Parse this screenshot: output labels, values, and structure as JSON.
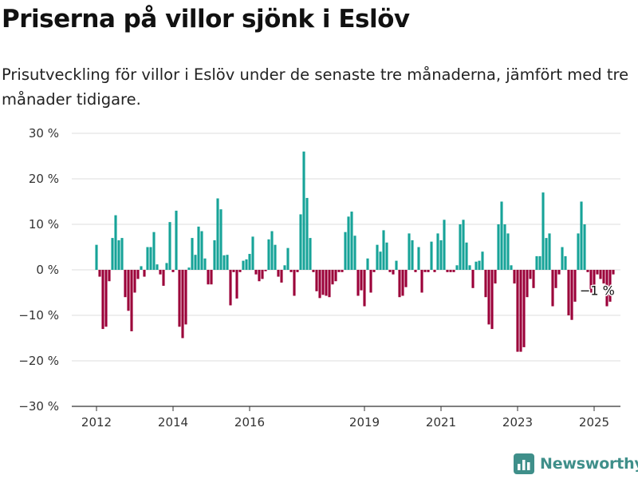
{
  "title": "Priserna på villor sjönk i Eslöv",
  "subtitle": "Prisutveckling för villor i Eslöv under de senaste tre månaderna, jämfört med tre månader tidigare.",
  "brand": {
    "name": "Newsworthy",
    "icon": "bar-chart-logo-icon"
  },
  "colors": {
    "positive": "#17a398",
    "negative": "#9b0039",
    "grid": "#dddddd",
    "axis": "#333333"
  },
  "chart_data": {
    "type": "bar",
    "ylim": [
      -30,
      30
    ],
    "y_ticks": [
      30,
      20,
      10,
      0,
      -10,
      -20,
      -30
    ],
    "y_tick_labels": [
      "30 %",
      "20 %",
      "10 %",
      "0 %",
      "−10 %",
      "−20 %",
      "−30 %"
    ],
    "x_tick_labels": [
      "2012",
      "2014",
      "2016",
      "2019",
      "2021",
      "2023",
      "2025"
    ],
    "x_tick_months": [
      0,
      24,
      48,
      84,
      108,
      132,
      156
    ],
    "start_month": 0,
    "series": [
      {
        "values": [
          5.5,
          -1.5,
          -13,
          -12.5,
          -2.5,
          7,
          12,
          6.5,
          7,
          -6,
          -9,
          -13.5,
          -5,
          -2,
          0.8,
          -1.5,
          5,
          5,
          8.3,
          1.2,
          -1,
          -3.5,
          1.5,
          10.5,
          -0.5,
          13,
          -12.5,
          -15,
          -12,
          0.5,
          7,
          3.3,
          9.5,
          8.5,
          2.5,
          -3.2,
          -3.2,
          6.5,
          15.7,
          13.3,
          3.2,
          3.3,
          -7.8,
          -0.5,
          -6.3,
          -0.5,
          2,
          2.3,
          3.5,
          7.3,
          -1,
          -2.5,
          -2,
          -0.3,
          6.7,
          8.5,
          5.5,
          -1.5,
          -2.8,
          1,
          4.8,
          -0.5,
          -5.7,
          -0.5,
          12.2,
          26,
          15.8,
          7,
          -0.5,
          -4.7,
          -6.2,
          -5.5,
          -5.7,
          -6,
          -3.2,
          -2.5,
          -0.5,
          -0.5,
          8.3,
          11.7,
          12.8,
          7.5,
          -5.7,
          -4.5,
          -8,
          2.5,
          -5,
          -0.5,
          5.5,
          4,
          8.7,
          6,
          -0.5,
          -1,
          2,
          -6,
          -5.7,
          -3.8,
          8,
          6.5,
          -0.5,
          5,
          -5,
          -0.5,
          -0.5,
          6.2,
          -0.5,
          8,
          6.5,
          11,
          -0.5,
          -0.5,
          -0.5,
          1,
          10,
          11,
          6,
          1,
          -4,
          1.8,
          2,
          4,
          -6,
          -12,
          -13,
          -3,
          10,
          15,
          10,
          8,
          1,
          -3,
          -18,
          -18,
          -17,
          -6,
          -2,
          -4,
          3,
          3,
          17,
          7,
          8,
          -8,
          -4,
          -1,
          5,
          3,
          -10,
          -11,
          -7,
          8,
          15,
          10,
          -0.5,
          -5,
          -4,
          -1,
          -2,
          -3,
          -8,
          -7,
          -1
        ]
      }
    ],
    "annotation": {
      "month": 154,
      "value": -1,
      "label": "−1 %"
    }
  }
}
